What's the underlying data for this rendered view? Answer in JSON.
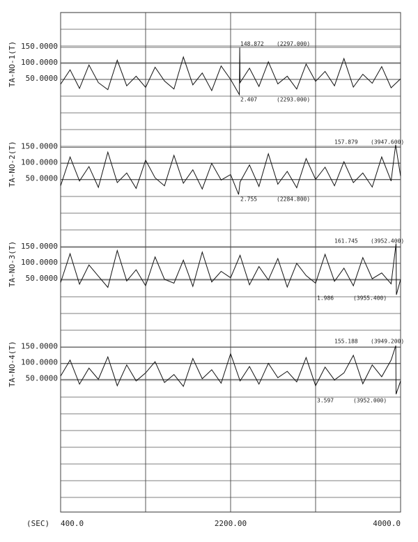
{
  "chart_data": [
    {
      "type": "line",
      "ylabel": "TA-NO-1(T)",
      "color": "#111111",
      "x": [
        400,
        500,
        600,
        700,
        800,
        900,
        1000,
        1100,
        1200,
        1300,
        1400,
        1500,
        1600,
        1700,
        1800,
        1900,
        2000,
        2100,
        2200,
        2293,
        2297,
        2300,
        2400,
        2500,
        2600,
        2700,
        2800,
        2900,
        3000,
        3100,
        3200,
        3300,
        3400,
        3500,
        3600,
        3700,
        3800,
        3900,
        4000
      ],
      "values": [
        35,
        80,
        22,
        95,
        40,
        18,
        110,
        30,
        60,
        25,
        88,
        45,
        20,
        120,
        33,
        70,
        15,
        92,
        50,
        2.407,
        148.872,
        40,
        85,
        28,
        105,
        36,
        60,
        20,
        98,
        44,
        75,
        30,
        115,
        26,
        66,
        38,
        90,
        24,
        52
      ],
      "xlim": [
        400,
        4000
      ],
      "ylim": [
        0,
        200
      ],
      "yticks": [
        {
          "value": 50,
          "label": "50.0000"
        },
        {
          "value": 100,
          "label": "100.0000"
        },
        {
          "value": 150,
          "label": "150.0000"
        }
      ],
      "max_label": "148.872",
      "max_at": "(2297.000)",
      "min_label": "2.407",
      "min_at": "(2293.000)"
    },
    {
      "type": "line",
      "ylabel": "TA-NO-2(T)",
      "color": "#111111",
      "x": [
        400,
        500,
        600,
        700,
        800,
        900,
        1000,
        1100,
        1200,
        1300,
        1400,
        1500,
        1600,
        1700,
        1800,
        1900,
        2000,
        2100,
        2200,
        2284.8,
        2300,
        2400,
        2500,
        2600,
        2700,
        2800,
        2900,
        3000,
        3100,
        3200,
        3300,
        3400,
        3500,
        3600,
        3700,
        3800,
        3900,
        3947.6,
        4000
      ],
      "values": [
        30,
        120,
        45,
        90,
        25,
        135,
        40,
        70,
        22,
        110,
        55,
        30,
        125,
        38,
        80,
        20,
        100,
        48,
        65,
        2.755,
        42,
        95,
        28,
        130,
        35,
        75,
        24,
        115,
        50,
        88,
        30,
        105,
        40,
        70,
        26,
        120,
        45,
        157.879,
        60
      ],
      "xlim": [
        400,
        4000
      ],
      "ylim": [
        0,
        200
      ],
      "yticks": [
        {
          "value": 50,
          "label": "50.0000"
        },
        {
          "value": 100,
          "label": "100.0000"
        },
        {
          "value": 150,
          "label": "150.0000"
        }
      ],
      "max_label": "157.879",
      "max_at": "(3947.600)",
      "min_label": "2.755",
      "min_at": "(2284.800)"
    },
    {
      "type": "line",
      "ylabel": "TA-NO-3(T)",
      "color": "#111111",
      "x": [
        400,
        500,
        600,
        700,
        800,
        900,
        1000,
        1100,
        1200,
        1300,
        1400,
        1500,
        1600,
        1700,
        1800,
        1900,
        2000,
        2100,
        2200,
        2300,
        2400,
        2500,
        2600,
        2700,
        2800,
        2900,
        3000,
        3100,
        3200,
        3300,
        3400,
        3500,
        3600,
        3700,
        3800,
        3900,
        3952.4,
        3955.4,
        4000
      ],
      "values": [
        40,
        130,
        35,
        95,
        60,
        25,
        140,
        45,
        80,
        30,
        120,
        50,
        38,
        110,
        28,
        135,
        42,
        75,
        55,
        125,
        33,
        90,
        48,
        115,
        26,
        100,
        62,
        38,
        128,
        44,
        85,
        30,
        118,
        52,
        70,
        36,
        161.745,
        1.986,
        50
      ],
      "xlim": [
        400,
        4000
      ],
      "ylim": [
        0,
        200
      ],
      "yticks": [
        {
          "value": 50,
          "label": "50.0000"
        },
        {
          "value": 100,
          "label": "100.0000"
        },
        {
          "value": 150,
          "label": "150.0000"
        }
      ],
      "max_label": "161.745",
      "max_at": "(3952.400)",
      "min_label": "1.986",
      "min_at": "(3955.400)"
    },
    {
      "type": "line",
      "ylabel": "TA-NO-4(T)",
      "color": "#111111",
      "x": [
        400,
        500,
        600,
        700,
        800,
        900,
        1000,
        1100,
        1200,
        1300,
        1400,
        1500,
        1600,
        1700,
        1800,
        1900,
        2000,
        2100,
        2200,
        2300,
        2400,
        2500,
        2600,
        2700,
        2800,
        2900,
        3000,
        3100,
        3200,
        3300,
        3400,
        3500,
        3600,
        3700,
        3800,
        3900,
        3949.2,
        3952,
        4000
      ],
      "values": [
        60,
        110,
        35,
        85,
        50,
        120,
        30,
        95,
        45,
        70,
        105,
        40,
        65,
        28,
        115,
        52,
        80,
        38,
        130,
        45,
        90,
        35,
        100,
        55,
        75,
        42,
        118,
        30,
        88,
        48,
        70,
        125,
        36,
        95,
        58,
        110,
        155.188,
        3.597,
        45
      ],
      "xlim": [
        400,
        4000
      ],
      "ylim": [
        0,
        200
      ],
      "yticks": [
        {
          "value": 50,
          "label": "50.0000"
        },
        {
          "value": 100,
          "label": "100.0000"
        },
        {
          "value": 150,
          "label": "150.0000"
        }
      ],
      "max_label": "155.188",
      "max_at": "(3949.200)",
      "min_label": "3.597",
      "min_at": "(3952.000)"
    }
  ],
  "x_axis": {
    "label": "(SEC)",
    "ticks": [
      {
        "value": 400,
        "label": "400.0"
      },
      {
        "value": 2200,
        "label": "2200.00"
      },
      {
        "value": 4000,
        "label": "4000.0"
      }
    ],
    "grid": [
      400,
      1300,
      2200,
      3100,
      4000
    ]
  }
}
